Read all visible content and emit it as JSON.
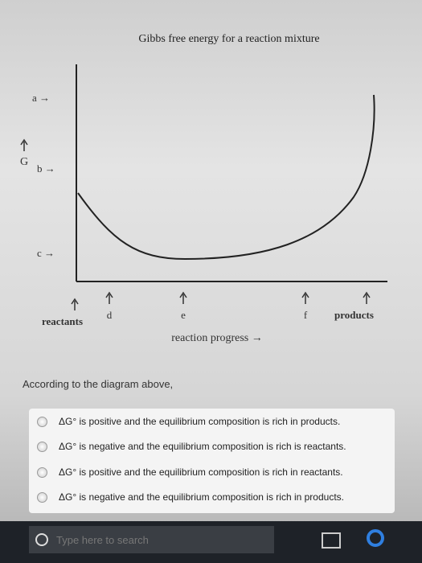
{
  "diagram": {
    "title": "Gibbs free energy for a reaction mixture",
    "y_axis_label": "G",
    "levels": [
      "a →",
      "b →",
      "c →"
    ],
    "points": [
      "d",
      "e",
      "f"
    ],
    "start": "reactants",
    "end": "products",
    "x_axis_label": "reaction progress →"
  },
  "question": {
    "prompt": "According to the diagram above,",
    "options": [
      "ΔG° is positive and the equilibrium composition is rich in products.",
      "ΔG° is negative and the equilibrium composition is rich is reactants.",
      "ΔG° is positive and the equilibrium composition is rich in reactants.",
      "ΔG° is negative and the equilibrium composition is rich in products."
    ]
  },
  "taskbar": {
    "search_placeholder": "Type here to search"
  }
}
